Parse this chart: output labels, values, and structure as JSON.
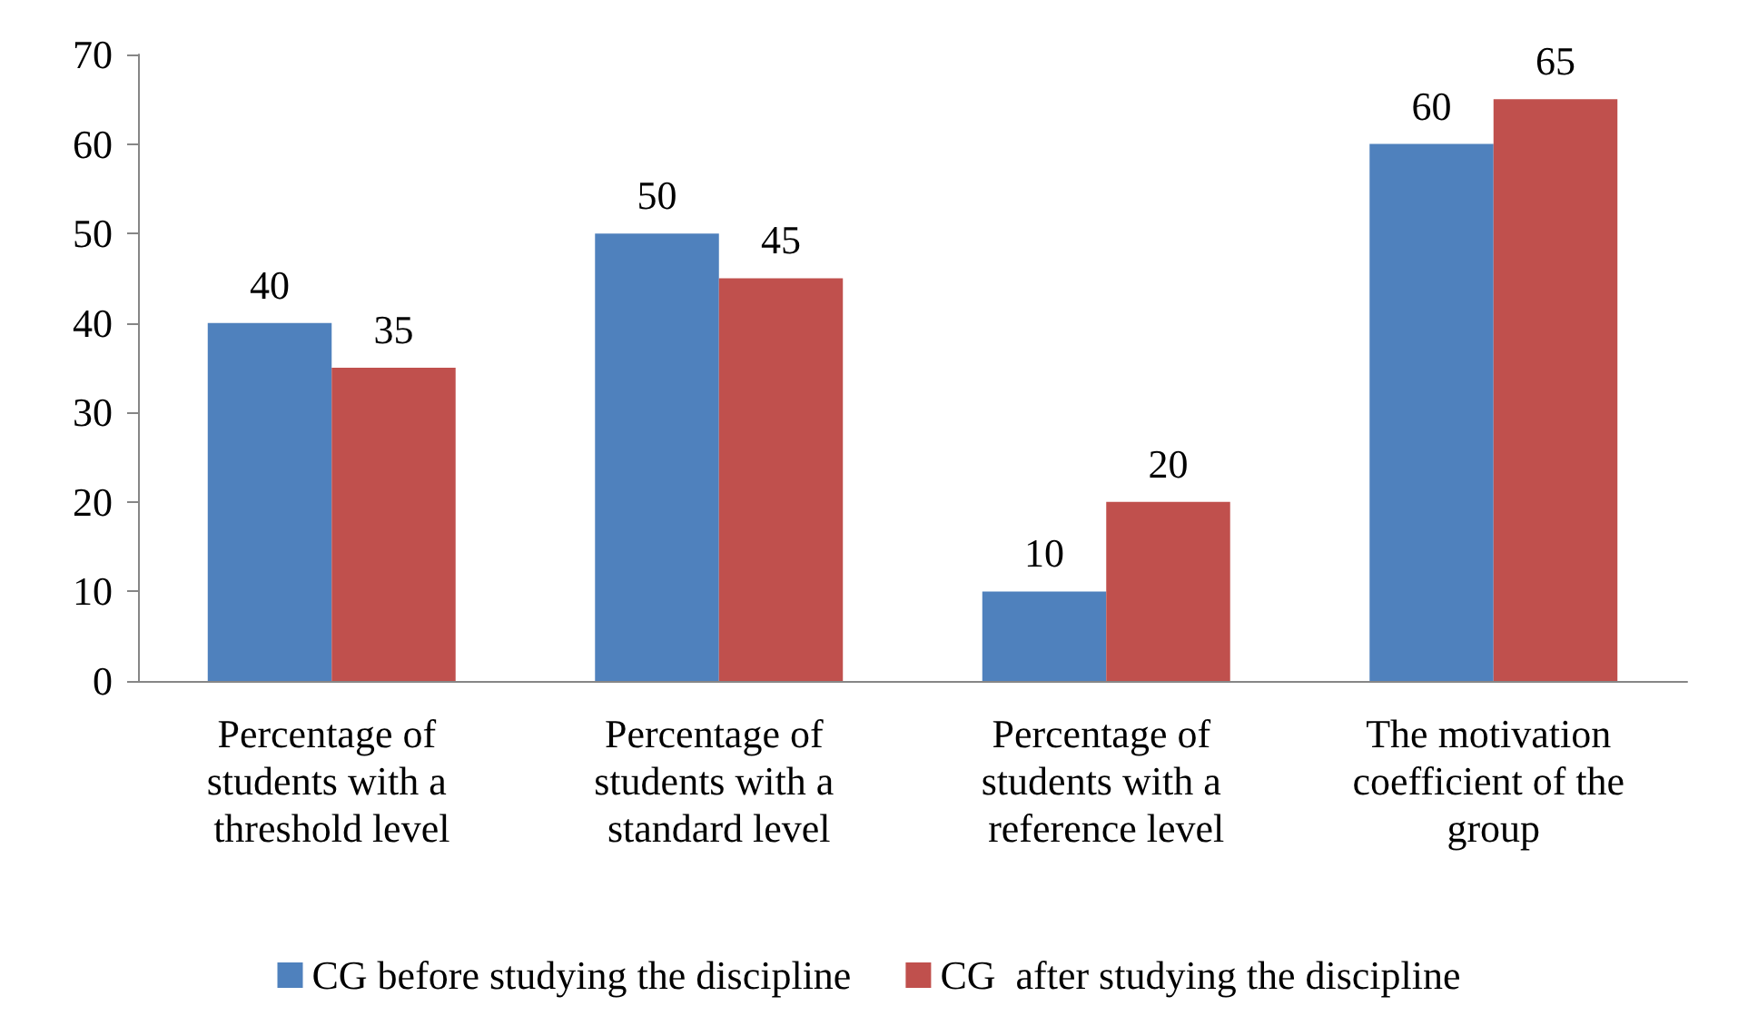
{
  "chart_data": {
    "type": "bar",
    "categories": [
      "Percentage of students with a threshold level",
      "Percentage of students with a standard level",
      "Percentage of students with a reference level",
      "The motivation coefficient of the group"
    ],
    "series": [
      {
        "name": "CG before studying the discipline",
        "color": "#4f81bd",
        "values": [
          40,
          50,
          10,
          60
        ]
      },
      {
        "name": "CG  after studying the discipline",
        "color": "#c0504d",
        "values": [
          35,
          45,
          20,
          65
        ]
      }
    ],
    "ylim": [
      0,
      70
    ],
    "yticks": [
      0,
      10,
      20,
      30,
      40,
      50,
      60,
      70
    ],
    "grid": false,
    "legend": "bottom",
    "data_labels": true
  }
}
